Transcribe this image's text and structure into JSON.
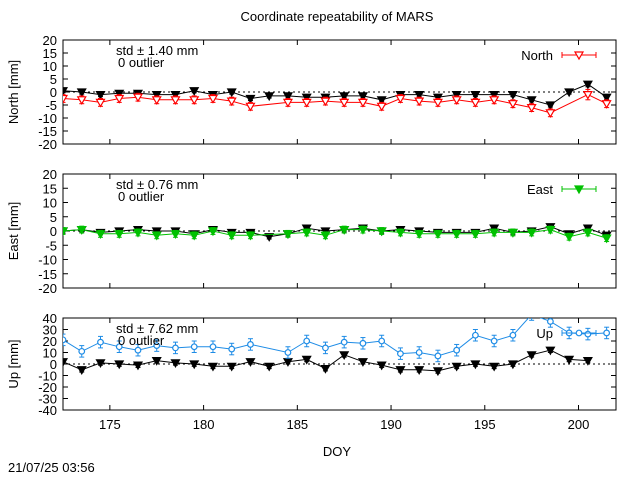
{
  "timestamp": "21/07/25 03:56",
  "chart_data": {
    "type": "line",
    "title": "Coordinate repeatability of MARS",
    "xlabel": "DOY",
    "xlim": [
      172.5,
      202
    ],
    "x_ticks": [
      175,
      180,
      185,
      190,
      195,
      200
    ],
    "panels": [
      {
        "name": "north",
        "ylabel": "North [mm]",
        "ylim": [
          -20,
          20
        ],
        "y_ticks": [
          20,
          15,
          10,
          5,
          0,
          -5,
          -10,
          -15,
          -20
        ],
        "std_text": "std ± 1.40 mm",
        "outlier_text": "0 outlier",
        "legend": "North",
        "color": "#ff0000",
        "marker": "open-triangle-down",
        "reference": {
          "doy": [
            172.5,
            173.5,
            174.5,
            175.5,
            176.5,
            177.5,
            178.5,
            179.5,
            180.5,
            181.5,
            182.5,
            183.5,
            184.5,
            185.5,
            186.5,
            187.5,
            188.5,
            189.5,
            190.5,
            191.5,
            192.5,
            193.5,
            194.5,
            195.5,
            196.5,
            197.5,
            198.5,
            199.5,
            200.5,
            201.5
          ],
          "values": [
            0.5,
            0.0,
            -1.0,
            -0.5,
            -0.5,
            -1.0,
            -1.0,
            0.5,
            -1.0,
            0.0,
            -2.5,
            -1.5,
            -1.5,
            -2.0,
            -2.0,
            -1.5,
            -1.5,
            -3.0,
            -1.0,
            -1.0,
            -2.0,
            -1.0,
            -1.0,
            -1.0,
            -1.0,
            -3.0,
            -5.0,
            0.0,
            3.0,
            -2.0
          ],
          "errors": [
            0.8,
            0.8,
            0.8,
            0.8,
            0.8,
            0.8,
            0.8,
            0.8,
            0.8,
            0.8,
            0.8,
            0.8,
            0.8,
            0.8,
            0.8,
            0.8,
            0.8,
            0.8,
            0.8,
            0.8,
            0.8,
            0.8,
            0.8,
            0.8,
            0.8,
            0.8,
            0.8,
            0.8,
            1.0,
            0.8
          ]
        },
        "series": {
          "doy": [
            172.5,
            173.5,
            174.5,
            175.5,
            176.5,
            177.5,
            178.5,
            179.5,
            180.5,
            181.5,
            182.5,
            184.5,
            185.5,
            186.5,
            187.5,
            188.5,
            189.5,
            190.5,
            191.5,
            192.5,
            193.5,
            194.5,
            195.5,
            196.5,
            197.5,
            198.5,
            200.5,
            201.5
          ],
          "values": [
            -2.5,
            -3.0,
            -4.0,
            -2.5,
            -2.0,
            -3.0,
            -3.0,
            -3.0,
            -2.5,
            -3.5,
            -5.5,
            -4.0,
            -4.0,
            -3.5,
            -4.0,
            -4.0,
            -5.5,
            -2.5,
            -3.5,
            -4.0,
            -3.0,
            -4.0,
            -3.0,
            -4.5,
            -6.0,
            -8.0,
            -1.0,
            -4.5
          ],
          "errors": [
            1.5,
            1.5,
            1.5,
            1.5,
            1.5,
            1.5,
            1.5,
            1.5,
            1.5,
            1.5,
            1.5,
            1.5,
            1.5,
            1.5,
            1.5,
            1.5,
            1.5,
            1.5,
            1.5,
            1.5,
            1.5,
            1.5,
            1.5,
            1.5,
            1.5,
            1.5,
            2.0,
            1.5
          ]
        }
      },
      {
        "name": "east",
        "ylabel": "East [mm]",
        "ylim": [
          -20,
          20
        ],
        "y_ticks": [
          20,
          15,
          10,
          5,
          0,
          -5,
          -10,
          -15,
          -20
        ],
        "std_text": "std ± 0.76 mm",
        "outlier_text": "0 outlier",
        "legend": "East",
        "color": "#00c000",
        "marker": "filled-triangle-down",
        "reference": {
          "doy": [
            172.5,
            173.5,
            174.5,
            175.5,
            176.5,
            177.5,
            178.5,
            179.5,
            180.5,
            181.5,
            182.5,
            183.5,
            184.5,
            185.5,
            186.5,
            187.5,
            188.5,
            189.5,
            190.5,
            191.5,
            192.5,
            193.5,
            194.5,
            195.5,
            196.5,
            197.5,
            198.5,
            199.5,
            200.5,
            201.5
          ],
          "values": [
            0.0,
            0.5,
            -0.5,
            0.0,
            0.5,
            0.0,
            0.0,
            -1.0,
            0.5,
            -0.5,
            -0.5,
            -2.0,
            -1.0,
            1.0,
            0.0,
            0.5,
            1.0,
            0.0,
            0.5,
            0.0,
            -0.5,
            -0.5,
            -0.5,
            1.0,
            -0.5,
            0.0,
            1.5,
            -1.0,
            1.0,
            -1.5
          ],
          "errors": [
            0.8,
            0.8,
            0.8,
            0.8,
            0.8,
            0.8,
            0.8,
            0.8,
            0.8,
            0.8,
            0.8,
            0.8,
            0.8,
            0.8,
            0.8,
            0.8,
            0.8,
            0.8,
            0.8,
            0.8,
            0.8,
            0.8,
            0.8,
            0.8,
            0.8,
            0.8,
            0.8,
            0.8,
            0.8,
            0.8
          ]
        },
        "series": {
          "doy": [
            172.5,
            173.5,
            174.5,
            175.5,
            176.5,
            177.5,
            178.5,
            179.5,
            180.5,
            181.5,
            182.5,
            184.5,
            185.5,
            186.5,
            187.5,
            188.5,
            189.5,
            190.5,
            191.5,
            192.5,
            193.5,
            194.5,
            195.5,
            196.5,
            197.5,
            198.5,
            199.5,
            200.5,
            201.5
          ],
          "values": [
            0.0,
            0.5,
            -1.0,
            -1.0,
            -0.5,
            -1.5,
            -1.0,
            -1.5,
            0.0,
            -1.5,
            -1.5,
            -1.0,
            -0.5,
            -1.5,
            0.5,
            0.5,
            0.0,
            -0.5,
            -1.0,
            -1.0,
            -1.0,
            -1.0,
            -0.5,
            -0.5,
            -0.5,
            0.5,
            -2.0,
            -0.5,
            -2.5
          ],
          "errors": [
            1.2,
            1.2,
            1.2,
            1.2,
            1.2,
            1.2,
            1.2,
            1.2,
            1.2,
            1.2,
            1.2,
            1.2,
            1.2,
            1.2,
            1.2,
            1.2,
            1.2,
            1.2,
            1.2,
            1.2,
            1.2,
            1.2,
            1.2,
            1.2,
            1.2,
            1.2,
            1.2,
            1.2,
            1.2
          ]
        }
      },
      {
        "name": "up",
        "ylabel": "Up [mm]",
        "ylim": [
          -40,
          40
        ],
        "y_ticks": [
          40,
          30,
          20,
          10,
          0,
          -10,
          -20,
          -30,
          -40
        ],
        "std_text": "std ± 7.62 mm",
        "outlier_text": "0 outlier",
        "legend": "Up",
        "color": "#1e8ce6",
        "marker": "open-circle",
        "reference": {
          "doy": [
            172.5,
            173.5,
            174.5,
            175.5,
            176.5,
            177.5,
            178.5,
            179.5,
            180.5,
            181.5,
            182.5,
            183.5,
            184.5,
            185.5,
            186.5,
            187.5,
            188.5,
            189.5,
            190.5,
            191.5,
            192.5,
            193.5,
            194.5,
            195.5,
            196.5,
            197.5,
            198.5,
            199.5,
            200.5
          ],
          "values": [
            2,
            -5,
            1,
            0,
            -1,
            3,
            1,
            0,
            -2,
            -2,
            2,
            -2,
            2,
            4,
            -4,
            8,
            2,
            -1,
            -5,
            -5,
            -6,
            -2,
            0,
            -2,
            0,
            8,
            12,
            4,
            3
          ],
          "errors": [
            2,
            2,
            2,
            2,
            2,
            2,
            2,
            2,
            2,
            2,
            2,
            2,
            2,
            2,
            2,
            2,
            2,
            2,
            2,
            2,
            2,
            2,
            2,
            2,
            2,
            2,
            2,
            2,
            2
          ]
        },
        "series": {
          "doy": [
            172.5,
            173.5,
            174.5,
            175.5,
            176.5,
            177.5,
            178.5,
            179.5,
            180.5,
            181.5,
            182.5,
            184.5,
            185.5,
            186.5,
            187.5,
            188.5,
            189.5,
            190.5,
            191.5,
            192.5,
            193.5,
            194.5,
            195.5,
            196.5,
            197.5,
            198.5,
            199.5,
            200.5,
            201.5
          ],
          "values": [
            21,
            11,
            19,
            15,
            12,
            16,
            14,
            15,
            15,
            13,
            17,
            10,
            20,
            14,
            19,
            18,
            20,
            9,
            10,
            7,
            12,
            25,
            20,
            25,
            43,
            37,
            27,
            26,
            27
          ],
          "errors": [
            5,
            5,
            5,
            5,
            5,
            5,
            5,
            5,
            5,
            5,
            5,
            5,
            5,
            5,
            5,
            5,
            5,
            5,
            5,
            5,
            5,
            5,
            5,
            5,
            5,
            5,
            5,
            5,
            5
          ]
        }
      }
    ]
  }
}
